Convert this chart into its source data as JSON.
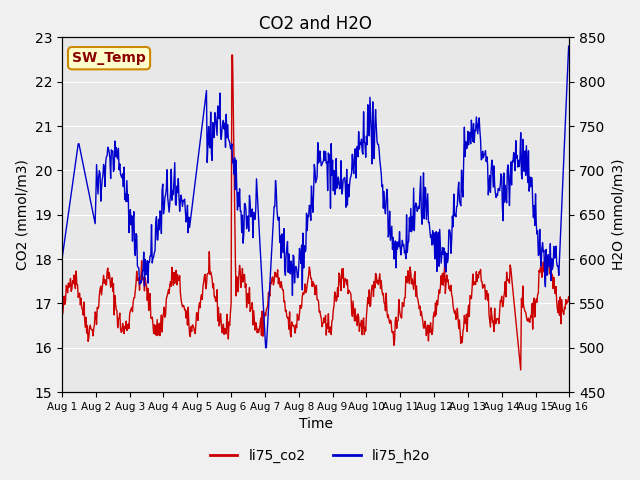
{
  "title": "CO2 and H2O",
  "xlabel": "Time",
  "ylabel_left": "CO2 (mmol/m3)",
  "ylabel_right": "H2O (mmol/m3)",
  "ylim_left": [
    15.0,
    23.0
  ],
  "ylim_right": [
    450,
    850
  ],
  "yticks_left": [
    15.0,
    16.0,
    17.0,
    18.0,
    19.0,
    20.0,
    21.0,
    22.0,
    23.0
  ],
  "yticks_right": [
    450,
    500,
    550,
    600,
    650,
    700,
    750,
    800,
    850
  ],
  "xtick_labels": [
    "Aug 1",
    "Aug 2",
    "Aug 3",
    "Aug 4",
    "Aug 5",
    "Aug 6",
    "Aug 7",
    "Aug 8",
    "Aug 9",
    "Aug 10",
    "Aug 11",
    "Aug 12",
    "Aug 13",
    "Aug 14",
    "Aug 15",
    "Aug 16"
  ],
  "color_co2": "#cc0000",
  "color_h2o": "#0000cc",
  "bg_color": "#e8e8e8",
  "legend_label_co2": "li75_co2",
  "legend_label_h2o": "li75_h2o",
  "annotation_text": "SW_Temp",
  "annotation_bg": "#ffffcc",
  "annotation_border": "#cc8800"
}
